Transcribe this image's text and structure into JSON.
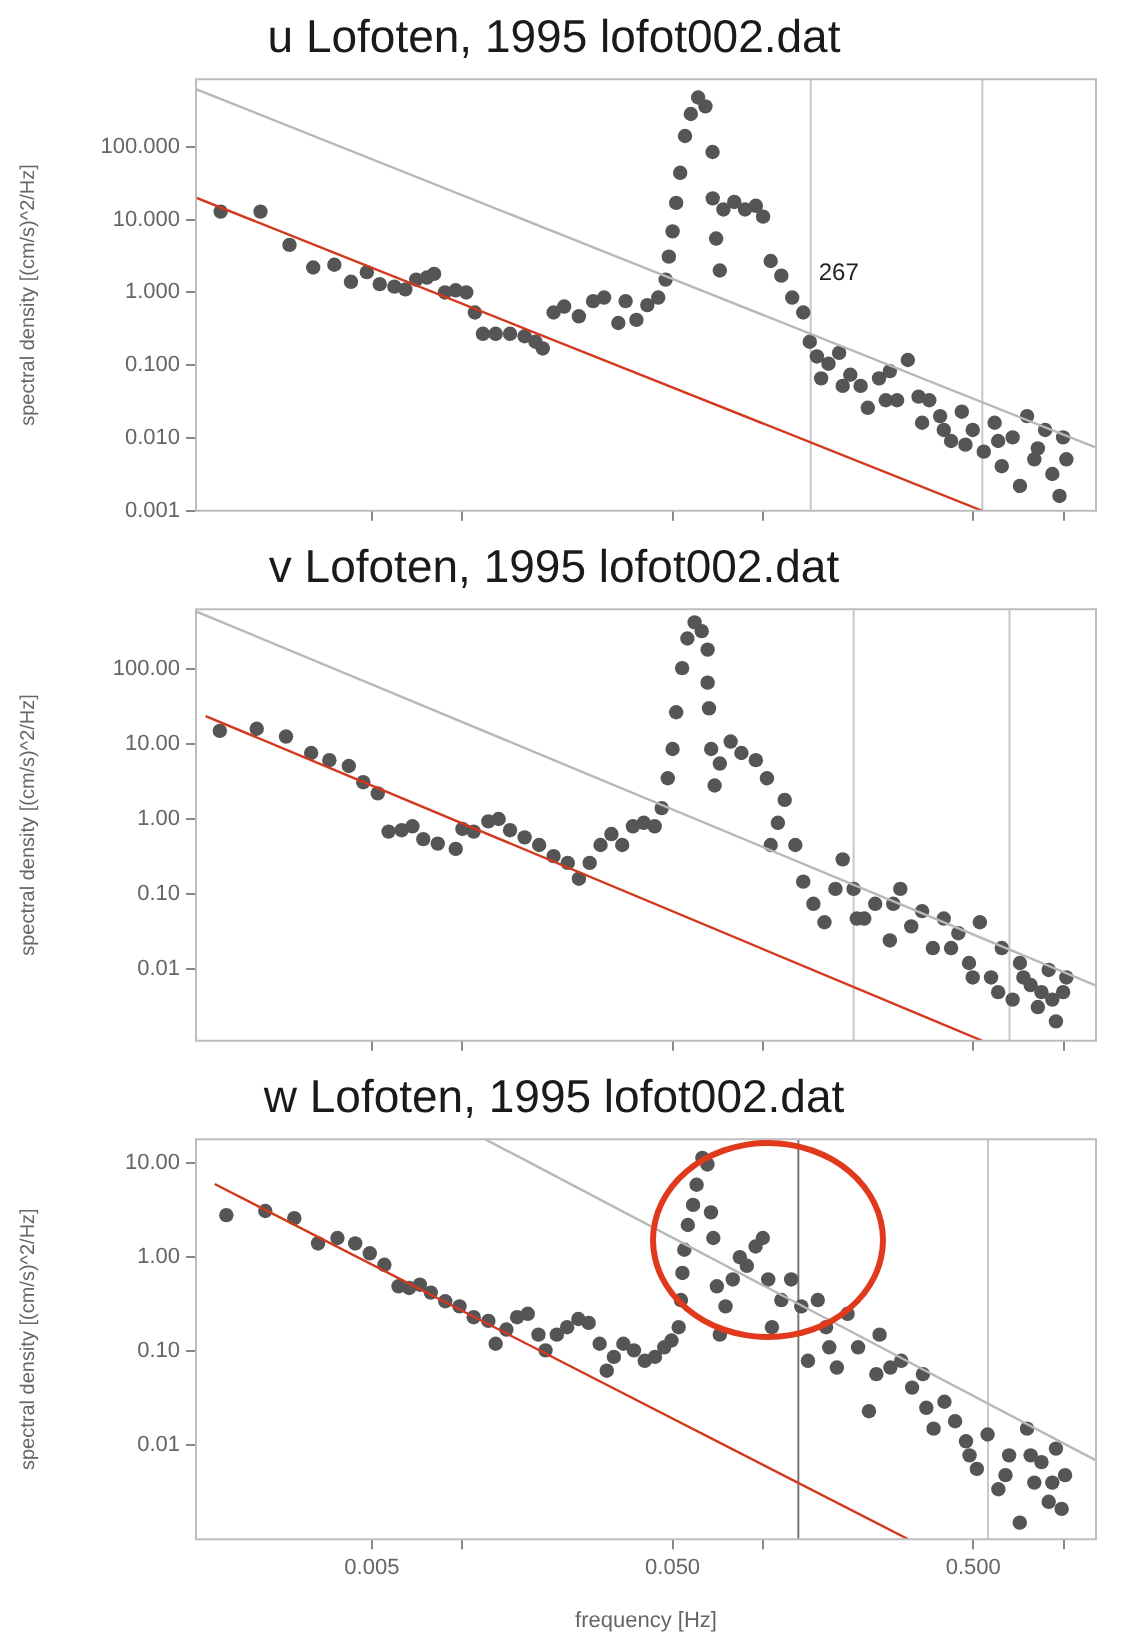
{
  "chart_data": [
    {
      "type": "scatter",
      "title": "u Lofoten, 1995 lofot002.dat",
      "ylabel": "spectral density [(cm/s)^2/Hz]",
      "log": "xy",
      "tick_labels": "y",
      "xlim": [
        0.0013,
        1.28
      ],
      "xticks": [
        {
          "value": 0.005,
          "label": null
        },
        {
          "value": 0.01,
          "label": null
        },
        {
          "value": 0.05,
          "label": null
        },
        {
          "value": 0.1,
          "label": null
        },
        {
          "value": 0.5,
          "label": null
        },
        {
          "value": 1,
          "label": null
        }
      ],
      "ylim": [
        0.001,
        850
      ],
      "yticks": [
        {
          "value": 0.001,
          "label": "0.001"
        },
        {
          "value": 0.01,
          "label": "0.010"
        },
        {
          "value": 0.1,
          "label": "0.100"
        },
        {
          "value": 1,
          "label": "1.000"
        },
        {
          "value": 10,
          "label": "10.000"
        },
        {
          "value": 100,
          "label": "100.000"
        }
      ],
      "ref_lines": [
        {
          "axis": "x",
          "value": 0.144,
          "color": "#c8c8c8"
        },
        {
          "axis": "x",
          "value": 0.536,
          "color": "#c8c8c8"
        }
      ],
      "annotations": [
        "267"
      ],
      "series": [
        {
          "type": "scatter",
          "color": "#555555",
          "marker": "circle",
          "x": [
            0.00157,
            0.00213,
            0.00266,
            0.00319,
            0.00375,
            0.00426,
            0.00481,
            0.00531,
            0.00594,
            0.00646,
            0.00702,
            0.00762,
            0.00805,
            0.00875,
            0.0095,
            0.0103,
            0.011,
            0.0117,
            0.0129,
            0.0144,
            0.0161,
            0.0175,
            0.0185,
            0.0201,
            0.0218,
            0.0244,
            0.0272,
            0.0296,
            0.033,
            0.0349,
            0.0379,
            0.0412,
            0.0448,
            0.0474,
            0.0486,
            0.05,
            0.0514,
            0.053,
            0.055,
            0.0575,
            0.0608,
            0.0643,
            0.0679,
            0.068,
            0.0698,
            0.0718,
            0.0738,
            0.0802,
            0.0871,
            0.0946,
            0.1,
            0.106,
            0.115,
            0.125,
            0.136,
            0.143,
            0.151,
            0.156,
            0.165,
            0.179,
            0.184,
            0.195,
            0.211,
            0.223,
            0.243,
            0.256,
            0.264,
            0.279,
            0.303,
            0.329,
            0.338,
            0.357,
            0.388,
            0.399,
            0.422,
            0.458,
            0.471,
            0.498,
            0.542,
            0.589,
            0.605,
            0.622,
            0.676,
            0.715,
            0.755,
            0.798,
            0.82,
            0.867,
            0.916,
            0.968,
            0.995,
            1.02
          ],
          "values": [
            12.9,
            12.9,
            4.5,
            2.2,
            2.4,
            1.4,
            1.9,
            1.3,
            1.2,
            1.1,
            1.5,
            1.6,
            1.8,
            1.0,
            1.07,
            1.0,
            0.53,
            0.27,
            0.27,
            0.27,
            0.25,
            0.21,
            0.17,
            0.53,
            0.64,
            0.47,
            0.76,
            0.85,
            0.38,
            0.76,
            0.42,
            0.67,
            0.85,
            1.5,
            3.1,
            6.9,
            17,
            44,
            141,
            283,
            476,
            360,
            85,
            19.6,
            5.5,
            2.0,
            13.8,
            17.5,
            13.8,
            15.5,
            11,
            2.7,
            1.7,
            0.85,
            0.53,
            0.21,
            0.132,
            0.066,
            0.105,
            0.148,
            0.052,
            0.074,
            0.052,
            0.026,
            0.066,
            0.033,
            0.083,
            0.033,
            0.118,
            0.037,
            0.0162,
            0.033,
            0.02,
            0.0129,
            0.0091,
            0.023,
            0.0081,
            0.0129,
            0.0065,
            0.0162,
            0.0091,
            0.0041,
            0.0102,
            0.0022,
            0.02,
            0.0051,
            0.0072,
            0.0129,
            0.0032,
            0.0016,
            0.0102,
            0.0051
          ]
        },
        {
          "type": "line",
          "color": "#b8b8b8",
          "marker": "none",
          "x": [
            0.0013,
            1.28
          ],
          "values": [
            620,
            0.0074
          ]
        },
        {
          "type": "line",
          "color": "#d4381c",
          "marker": "none",
          "x": [
            0.0013,
            0.536
          ],
          "values": [
            20,
            0.001
          ]
        }
      ]
    },
    {
      "type": "scatter",
      "title": "v Lofoten, 1995 lofot002.dat",
      "ylabel": "spectral density [(cm/s)^2/Hz]",
      "log": "xy",
      "tick_labels": "y",
      "xlim": [
        0.0013,
        1.28
      ],
      "xticks": [
        {
          "value": 0.005,
          "label": null
        },
        {
          "value": 0.01,
          "label": null
        },
        {
          "value": 0.05,
          "label": null
        },
        {
          "value": 0.1,
          "label": null
        },
        {
          "value": 0.5,
          "label": null
        },
        {
          "value": 1,
          "label": null
        }
      ],
      "ylim": [
        0.0011,
        630
      ],
      "yticks": [
        {
          "value": 0.01,
          "label": "0.01"
        },
        {
          "value": 0.1,
          "label": "0.10"
        },
        {
          "value": 1,
          "label": "1.00"
        },
        {
          "value": 10,
          "label": "10.00"
        },
        {
          "value": 100,
          "label": "100.00"
        }
      ],
      "ref_lines": [
        {
          "axis": "x",
          "value": 0.2,
          "color": "#c8c8c8"
        },
        {
          "axis": "x",
          "value": 0.66,
          "color": "#c8c8c8"
        }
      ],
      "series": [
        {
          "type": "scatter",
          "color": "#555555",
          "marker": "circle",
          "x": [
            0.00156,
            0.00207,
            0.00259,
            0.00314,
            0.00361,
            0.00419,
            0.00468,
            0.00523,
            0.00568,
            0.00628,
            0.00682,
            0.00741,
            0.00828,
            0.0095,
            0.01,
            0.0109,
            0.0122,
            0.0132,
            0.0144,
            0.0161,
            0.018,
            0.0201,
            0.0224,
            0.0244,
            0.0265,
            0.0288,
            0.0313,
            0.034,
            0.0369,
            0.0401,
            0.0436,
            0.046,
            0.0482,
            0.05,
            0.0514,
            0.0538,
            0.056,
            0.0592,
            0.0625,
            0.0654,
            0.0654,
            0.0661,
            0.0672,
            0.069,
            0.0718,
            0.078,
            0.0847,
            0.0946,
            0.103,
            0.106,
            0.112,
            0.118,
            0.128,
            0.136,
            0.147,
            0.16,
            0.174,
            0.184,
            0.2,
            0.205,
            0.217,
            0.236,
            0.264,
            0.271,
            0.286,
            0.311,
            0.338,
            0.367,
            0.399,
            0.422,
            0.446,
            0.484,
            0.498,
            0.526,
            0.573,
            0.605,
            0.622,
            0.676,
            0.715,
            0.734,
            0.776,
            0.82,
            0.843,
            0.891,
            0.916,
            0.942,
            0.995,
            1.02
          ],
          "values": [
            15,
            16,
            12.6,
            7.6,
            6.1,
            5.1,
            3.1,
            2.2,
            0.68,
            0.71,
            0.8,
            0.54,
            0.47,
            0.4,
            0.74,
            0.68,
            0.93,
            1.0,
            0.71,
            0.57,
            0.45,
            0.32,
            0.26,
            0.16,
            0.26,
            0.45,
            0.63,
            0.45,
            0.8,
            0.89,
            0.8,
            1.4,
            3.5,
            8.6,
            26.6,
            103,
            256,
            420,
            321,
            182,
            66,
            30,
            8.6,
            2.8,
            5.5,
            10.8,
            7.6,
            6.1,
            3.5,
            0.45,
            0.89,
            1.8,
            0.45,
            0.146,
            0.074,
            0.042,
            0.117,
            0.29,
            0.117,
            0.047,
            0.047,
            0.074,
            0.024,
            0.074,
            0.117,
            0.037,
            0.059,
            0.019,
            0.047,
            0.019,
            0.03,
            0.012,
            0.0077,
            0.042,
            0.0077,
            0.0049,
            0.019,
            0.0039,
            0.012,
            0.0077,
            0.0061,
            0.0031,
            0.0049,
            0.0097,
            0.0039,
            0.002,
            0.0049,
            0.0077
          ]
        },
        {
          "type": "line",
          "color": "#b8b8b8",
          "marker": "none",
          "x": [
            0.0013,
            1.28
          ],
          "values": [
            590,
            0.006
          ]
        },
        {
          "type": "line",
          "color": "#d4381c",
          "marker": "none",
          "x": [
            0.0014,
            0.536
          ],
          "values": [
            23.6,
            0.0011
          ]
        }
      ]
    },
    {
      "type": "scatter",
      "title": "w Lofoten, 1995 lofot002.dat",
      "xlabel": "frequency [Hz]",
      "ylabel": "spectral density [(cm/s)^2/Hz]",
      "log": "xy",
      "xlim": [
        0.0013,
        1.28
      ],
      "xticks": [
        0.005,
        {
          "value": 0.01,
          "label": null
        },
        {
          "value": 0.05,
          "label": "0.050"
        },
        {
          "value": 0.1,
          "label": null
        },
        {
          "value": 0.5,
          "label": "0.500"
        },
        {
          "value": 1,
          "label": null
        }
      ],
      "ylim": [
        0.001,
        18
      ],
      "yticks": [
        {
          "value": 0.01,
          "label": "0.01"
        },
        {
          "value": 0.1,
          "label": "0.10"
        },
        {
          "value": 1,
          "label": "1.00"
        },
        {
          "value": 10,
          "label": "10.00"
        }
      ],
      "ref_lines": [
        {
          "axis": "x",
          "value": 0.131,
          "color": "#777777"
        },
        {
          "axis": "x",
          "value": 0.56,
          "color": "#c8c8c8"
        }
      ],
      "series": [
        {
          "type": "scatter",
          "color": "#555555",
          "marker": "circle",
          "x": [
            0.00164,
            0.00221,
            0.00276,
            0.00331,
            0.00384,
            0.0044,
            0.00492,
            0.0055,
            0.00613,
            0.00665,
            0.00722,
            0.00785,
            0.00877,
            0.00978,
            0.0109,
            0.0122,
            0.0129,
            0.014,
            0.0152,
            0.0165,
            0.0179,
            0.0189,
            0.0206,
            0.0223,
            0.0243,
            0.0263,
            0.0286,
            0.0302,
            0.0319,
            0.0343,
            0.0372,
            0.0404,
            0.0437,
            0.0469,
            0.0496,
            0.0524,
            0.0533,
            0.0539,
            0.0547,
            0.0562,
            0.0585,
            0.0601,
            0.0628,
            0.0653,
            0.0671,
            0.0683,
            0.0702,
            0.0718,
            0.075,
            0.0793,
            0.0837,
            0.0883,
            0.0944,
            0.0998,
            0.104,
            0.107,
            0.115,
            0.124,
            0.134,
            0.141,
            0.152,
            0.162,
            0.166,
            0.176,
            0.191,
            0.207,
            0.225,
            0.238,
            0.244,
            0.265,
            0.288,
            0.313,
            0.34,
            0.349,
            0.369,
            0.401,
            0.435,
            0.473,
            0.486,
            0.514,
            0.558,
            0.606,
            0.64,
            0.658,
            0.714,
            0.755,
            0.776,
            0.798,
            0.843,
            0.891,
            0.916,
            0.942,
            0.984,
            1.01
          ],
          "values": [
            2.8,
            3.1,
            2.6,
            1.4,
            1.6,
            1.4,
            1.1,
            0.83,
            0.49,
            0.47,
            0.51,
            0.42,
            0.34,
            0.3,
            0.23,
            0.21,
            0.12,
            0.17,
            0.23,
            0.25,
            0.15,
            0.102,
            0.15,
            0.18,
            0.22,
            0.2,
            0.12,
            0.062,
            0.087,
            0.12,
            0.102,
            0.079,
            0.087,
            0.11,
            0.13,
            0.18,
            0.35,
            0.68,
            1.2,
            2.2,
            3.6,
            5.9,
            11.4,
            9.7,
            3.0,
            1.6,
            0.49,
            0.15,
            0.3,
            0.58,
            1.0,
            0.81,
            1.3,
            1.6,
            0.58,
            0.18,
            0.35,
            0.58,
            0.3,
            0.079,
            0.35,
            0.18,
            0.11,
            0.067,
            0.25,
            0.11,
            0.023,
            0.057,
            0.15,
            0.067,
            0.079,
            0.041,
            0.057,
            0.025,
            0.015,
            0.029,
            0.018,
            0.011,
            0.0078,
            0.0056,
            0.013,
            0.0034,
            0.0048,
            0.0078,
            0.0015,
            0.015,
            0.0078,
            0.004,
            0.0066,
            0.0025,
            0.004,
            0.0092,
            0.0021,
            0.0048
          ]
        },
        {
          "type": "line",
          "color": "#b8b8b8",
          "marker": "none",
          "x": [
            0.0119,
            1.28
          ],
          "values": [
            18,
            0.0069
          ]
        },
        {
          "type": "line",
          "color": "#d4381c",
          "marker": "none",
          "x": [
            0.0015,
            0.304
          ],
          "values": [
            6.0,
            0.001
          ]
        }
      ]
    }
  ]
}
